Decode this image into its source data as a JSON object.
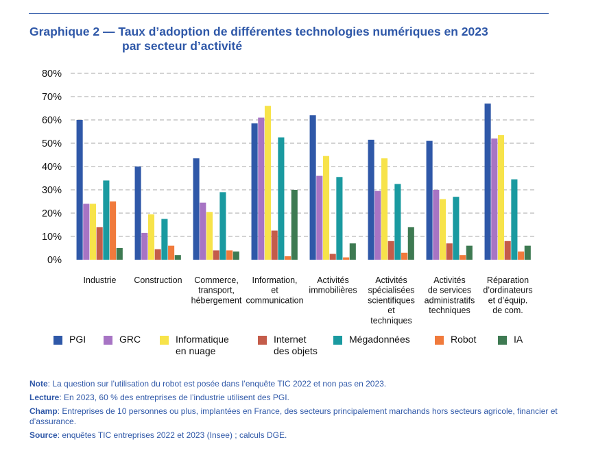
{
  "title_line1": "Graphique 2 — Taux d’adoption de différentes technologies numériques en 2023",
  "title_line2": "par secteur d’activité",
  "chart_data": {
    "type": "bar",
    "title": "Taux d’adoption de différentes technologies numériques en 2023 par secteur d’activité",
    "xlabel": "",
    "ylabel": "",
    "ylim": [
      0,
      80
    ],
    "yticks": [
      0,
      10,
      20,
      30,
      40,
      50,
      60,
      70,
      80
    ],
    "ytick_labels": [
      "0%",
      "10%",
      "20%",
      "30%",
      "40%",
      "50%",
      "60%",
      "70%",
      "80%"
    ],
    "grid": true,
    "legend_position": "bottom",
    "categories": [
      "Industrie",
      "Construction",
      "Commerce,\ntransport,\nhébergement",
      "Information,\net\ncommunication",
      "Activités\nimmobilières",
      "Activités\nspécialisées\nscientifiques\net\ntechniques",
      "Activités\nde services\nadministratifs\ntechniques",
      "Réparation\nd’ordinateurs\net d’équip.\nde com."
    ],
    "series": [
      {
        "name": "PGI",
        "legend_label": "PGI",
        "color": "#2f58a8",
        "values": [
          60,
          40,
          43.5,
          58.5,
          62,
          51.5,
          51,
          67
        ]
      },
      {
        "name": "GRC",
        "legend_label": "GRC",
        "color": "#a774c4",
        "values": [
          24,
          11.5,
          24.5,
          61,
          36,
          29.5,
          30,
          52
        ]
      },
      {
        "name": "Informatique en nuage",
        "legend_label": "Informatique\nen nuage",
        "color": "#f7e34a",
        "values": [
          24,
          19.5,
          20.5,
          66,
          44.5,
          43.5,
          26,
          53.5
        ]
      },
      {
        "name": "Internet des objets",
        "legend_label": "Internet\ndes objets",
        "color": "#c45c4a",
        "values": [
          14,
          4.5,
          4,
          12.5,
          2.5,
          8,
          7,
          8
        ]
      },
      {
        "name": "Mégadonnées",
        "legend_label": "Mégadonnées",
        "color": "#1a9aa0",
        "values": [
          34,
          17.5,
          29,
          52.5,
          35.5,
          32.5,
          27,
          34.5
        ]
      },
      {
        "name": "Robot",
        "legend_label": "Robot",
        "color": "#f07a3c",
        "values": [
          25,
          6,
          4,
          1.5,
          1,
          3,
          2,
          3.5
        ]
      },
      {
        "name": "IA",
        "legend_label": "IA",
        "color": "#3e7a52",
        "values": [
          5,
          2,
          3.5,
          30,
          7,
          14,
          6,
          6
        ]
      }
    ]
  },
  "notes": [
    {
      "label": "Note",
      "text": ": La question sur l’utilisation du robot est posée dans l’enquête TIC 2022 et non pas en 2023."
    },
    {
      "label": "Lecture",
      "text": ": En 2023, 60 % des entreprises de l’industrie utilisent des PGI."
    },
    {
      "label": "Champ",
      "text": ": Entreprises de 10 personnes ou plus, implantées en France, des secteurs principalement marchands hors secteurs agricole, financier et d’assurance."
    },
    {
      "label": "Source",
      "text": ": enquêtes TIC entreprises 2022 et 2023 (Insee) ; calculs DGE."
    }
  ]
}
